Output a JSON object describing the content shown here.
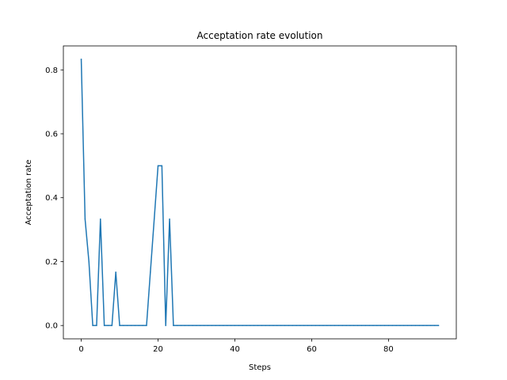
{
  "chart_data": {
    "type": "line",
    "title": "Acceptation rate evolution",
    "xlabel": "Steps",
    "ylabel": "Acceptation rate",
    "xlim": [
      -4.65,
      97.65
    ],
    "ylim": [
      -0.0417,
      0.875
    ],
    "xticks": [
      0,
      20,
      40,
      60,
      80
    ],
    "xtick_labels": [
      "0",
      "20",
      "40",
      "60",
      "80"
    ],
    "yticks": [
      0.0,
      0.2,
      0.4,
      0.6,
      0.8
    ],
    "ytick_labels": [
      "0.0",
      "0.2",
      "0.4",
      "0.6",
      "0.8"
    ],
    "grid": false,
    "series": [
      {
        "color": "#1f77b4",
        "x": [
          0,
          1,
          2,
          3,
          4,
          5,
          6,
          7,
          8,
          9,
          10,
          11,
          12,
          13,
          14,
          15,
          16,
          17,
          18,
          19,
          20,
          21,
          22,
          23,
          24,
          25,
          26,
          27,
          28,
          29,
          30,
          31,
          32,
          33,
          34,
          35,
          36,
          37,
          38,
          39,
          40,
          41,
          42,
          43,
          44,
          45,
          46,
          47,
          48,
          49,
          50,
          51,
          52,
          53,
          54,
          55,
          56,
          57,
          58,
          59,
          60,
          61,
          62,
          63,
          64,
          65,
          66,
          67,
          68,
          69,
          70,
          71,
          72,
          73,
          74,
          75,
          76,
          77,
          78,
          79,
          80,
          81,
          82,
          83,
          84,
          85,
          86,
          87,
          88,
          89,
          90,
          91,
          92,
          93
        ],
        "y": [
          0.833,
          0.333,
          0.2,
          0,
          0,
          0.333,
          0,
          0,
          0,
          0.167,
          0,
          0,
          0,
          0,
          0,
          0,
          0,
          0,
          0.167,
          0.333,
          0.5,
          0.5,
          0,
          0.333,
          0,
          0,
          0,
          0,
          0,
          0,
          0,
          0,
          0,
          0,
          0,
          0,
          0,
          0,
          0,
          0,
          0,
          0,
          0,
          0,
          0,
          0,
          0,
          0,
          0,
          0,
          0,
          0,
          0,
          0,
          0,
          0,
          0,
          0,
          0,
          0,
          0,
          0,
          0,
          0,
          0,
          0,
          0,
          0,
          0,
          0,
          0,
          0,
          0,
          0,
          0,
          0,
          0,
          0,
          0,
          0,
          0,
          0,
          0,
          0,
          0,
          0,
          0,
          0,
          0,
          0,
          0,
          0,
          0,
          0
        ]
      }
    ]
  }
}
